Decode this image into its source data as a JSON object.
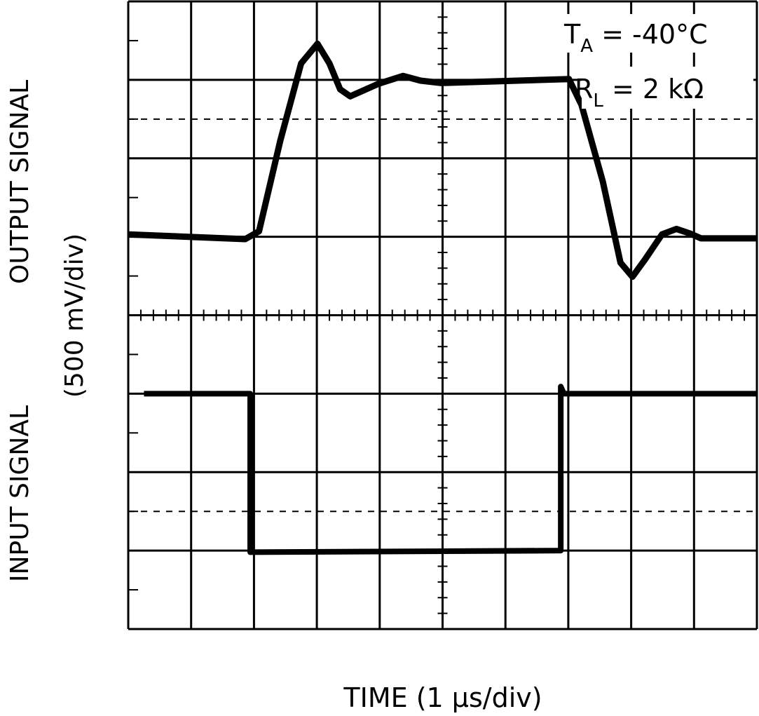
{
  "chart_data": {
    "type": "line",
    "title": "",
    "xlabel": "TIME (1 µs/div)",
    "ylabel_output": "OUTPUT SIGNAL",
    "ylabel_input": "INPUT SIGNAL",
    "ylabel_scale": "(500 mV/div)",
    "annotations": [
      {
        "main": "T",
        "sub": "A",
        "rest": " = -40°C"
      },
      {
        "main": "R",
        "sub": "L",
        "rest": " = 2 kΩ"
      }
    ],
    "xlim": [
      0,
      10
    ],
    "ylim": [
      -4,
      4
    ],
    "x_unit": "div (1 µs/div)",
    "y_unit": "div (500 mV/div)",
    "grid": true,
    "colors": {
      "trace": "#000000",
      "grid": "#000000",
      "background": "#ffffff"
    },
    "series": [
      {
        "id": "output",
        "x": [
          0,
          1.86,
          2.08,
          2.42,
          2.75,
          3.01,
          3.2,
          3.37,
          3.53,
          3.98,
          4.37,
          4.65,
          4.98,
          7.01,
          7.21,
          7.55,
          7.83,
          8.02,
          8.22,
          8.49,
          8.72,
          8.94,
          9.11,
          10
        ],
        "y": [
          1.03,
          0.97,
          1.07,
          2.23,
          3.21,
          3.46,
          3.21,
          2.88,
          2.79,
          2.95,
          3.05,
          2.99,
          2.96,
          3.01,
          2.68,
          1.7,
          0.67,
          0.49,
          0.71,
          1.03,
          1.1,
          1.04,
          0.98,
          0.98
        ]
      },
      {
        "id": "input",
        "x": [
          0.25,
          1.94,
          1.94,
          6.88,
          6.88,
          6.93,
          10
        ],
        "y": [
          -1,
          -1,
          -3.02,
          -3,
          -0.91,
          -1,
          -1
        ]
      }
    ]
  }
}
